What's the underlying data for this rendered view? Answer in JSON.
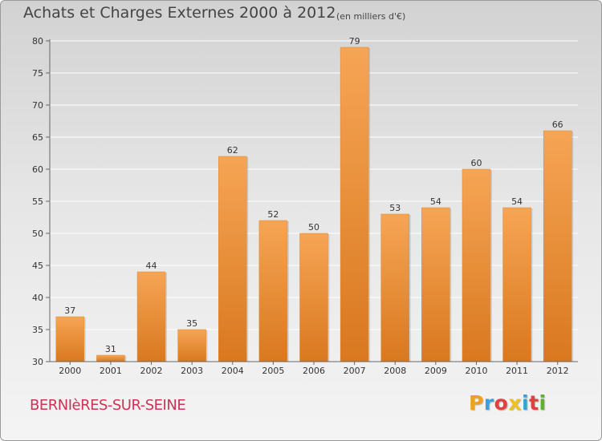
{
  "header": {
    "title": "Achats et Charges Externes 2000 à 2012",
    "subtitle": "(en milliers d'€)"
  },
  "footer": {
    "commune": "BERNIèRES-SUR-SEINE",
    "logo_letters": [
      "P",
      "r",
      "o",
      "x",
      "i",
      "t",
      "i"
    ],
    "logo_colors": [
      "#f0a020",
      "#3aa0dc",
      "#e04040",
      "#f0c020",
      "#3aa0dc",
      "#e04040",
      "#60b030"
    ]
  },
  "chart_data": {
    "type": "bar",
    "title": "Achats et Charges Externes 2000 à 2012",
    "subtitle": "(en milliers d'€)",
    "categories": [
      "2000",
      "2001",
      "2002",
      "2003",
      "2004",
      "2005",
      "2006",
      "2007",
      "2008",
      "2009",
      "2010",
      "2011",
      "2012"
    ],
    "values": [
      37,
      31,
      44,
      35,
      62,
      52,
      50,
      79,
      53,
      54,
      60,
      54,
      66
    ],
    "ylim": [
      30,
      80
    ],
    "yticks": [
      30,
      35,
      40,
      45,
      50,
      55,
      60,
      65,
      70,
      75,
      80
    ],
    "grid": true,
    "colors": {
      "bar_top": "#f6a555",
      "bar_bottom": "#d9781f",
      "axis": "#666666",
      "grid": "#ffffff",
      "text": "#333333"
    }
  }
}
